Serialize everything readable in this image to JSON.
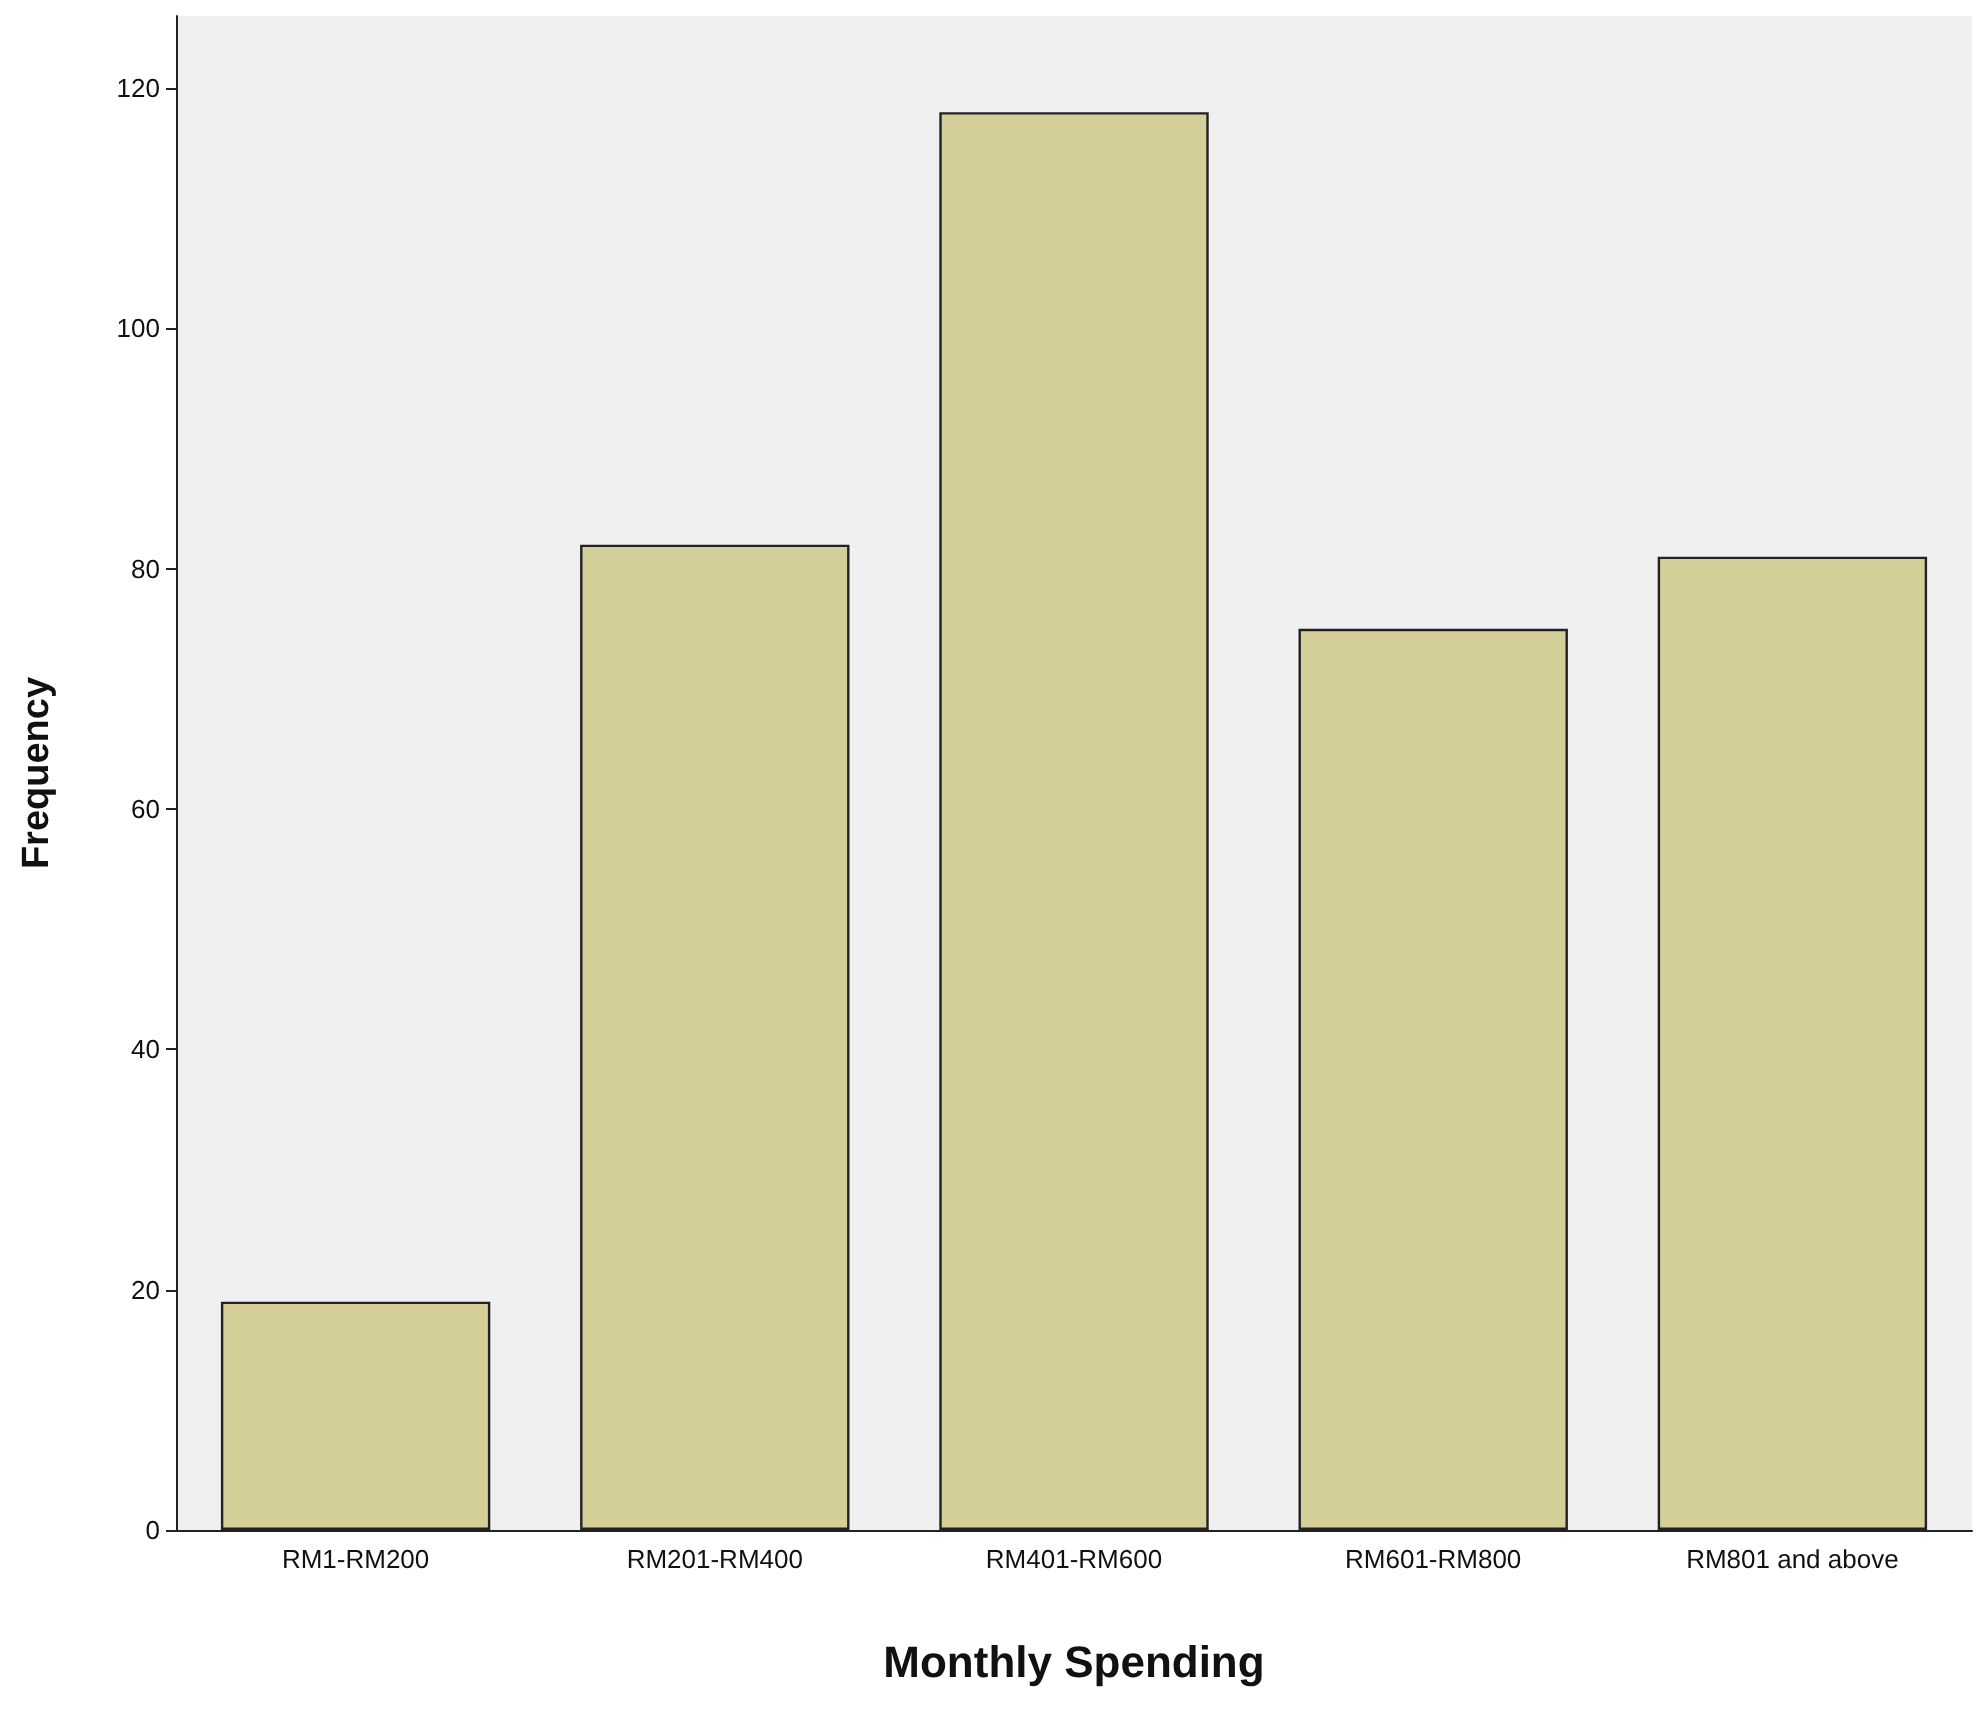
{
  "chart_data": {
    "type": "bar",
    "xlabel": "Monthly Spending",
    "ylabel": "Frequency",
    "categories": [
      "RM1-RM200",
      "RM201-RM400",
      "RM401-RM600",
      "RM601-RM800",
      "RM801 and above"
    ],
    "values": [
      19,
      82,
      118,
      75,
      81
    ],
    "color": "#d4cf99",
    "ylim": [
      0,
      126
    ],
    "yticks": [
      0,
      20,
      40,
      60,
      80,
      100,
      120
    ],
    "grid": false
  }
}
